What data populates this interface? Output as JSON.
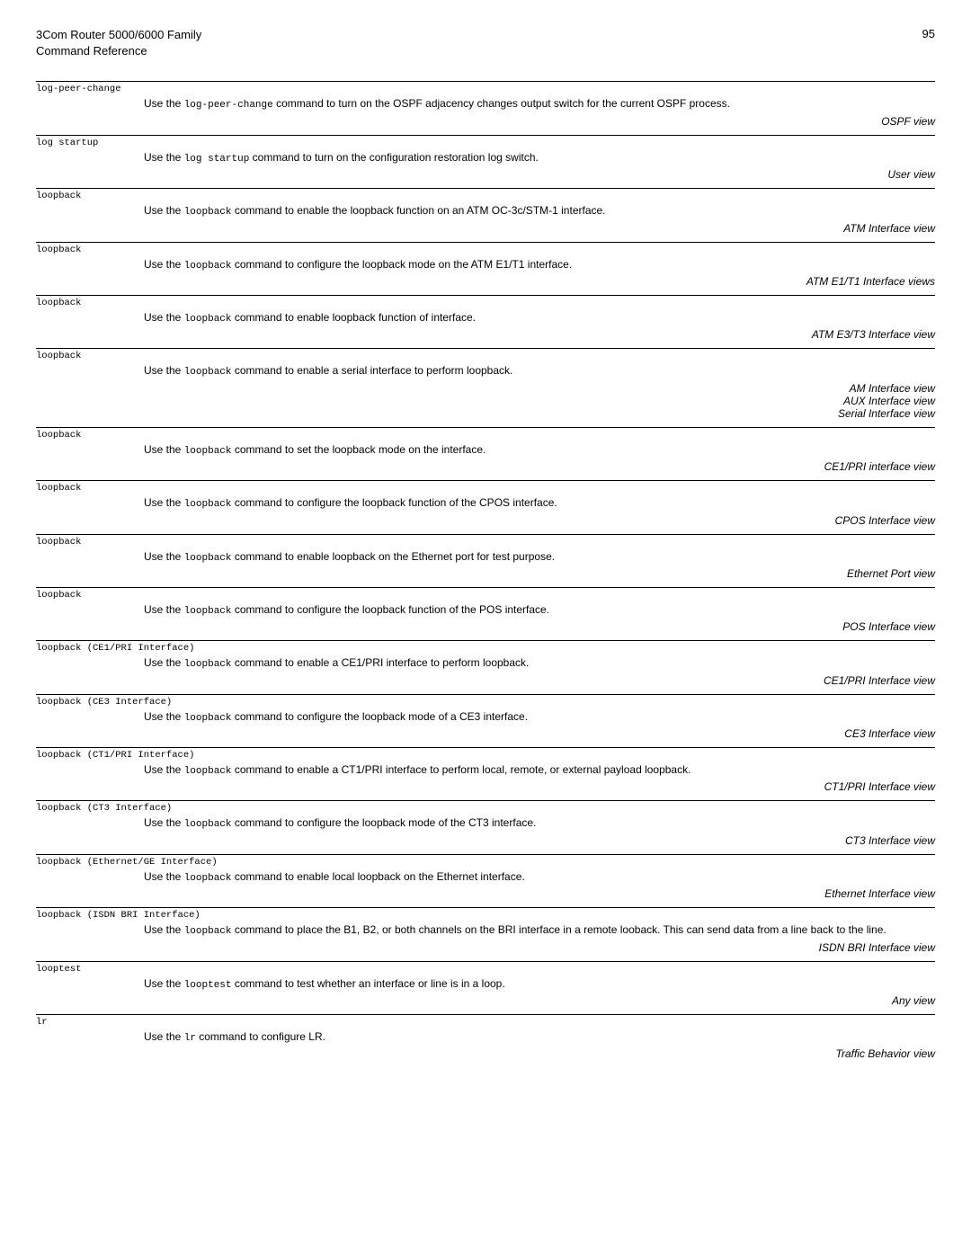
{
  "header": {
    "productLine1": "3Com Router 5000/6000 Family",
    "productLine2": "Command Reference",
    "pageNumber": "95"
  },
  "entries": [
    {
      "cmd": "log-peer-change",
      "desc_pre": "Use the ",
      "desc_code": "log-peer-change",
      "desc_post": " command to turn on the OSPF adjacency changes output switch for the current OSPF process.",
      "views": [
        "OSPF view"
      ]
    },
    {
      "cmd": "log startup",
      "desc_pre": "Use the ",
      "desc_code": "log startup",
      "desc_post": " command to turn on the configuration restoration log switch.",
      "views": [
        "User view"
      ]
    },
    {
      "cmd": "loopback",
      "desc_pre": "Use the ",
      "desc_code": "loopback",
      "desc_post": " command to enable the loopback function on an ATM OC-3c/STM-1 interface.",
      "views": [
        "ATM Interface view"
      ]
    },
    {
      "cmd": "loopback",
      "desc_pre": "Use the ",
      "desc_code": "loopback",
      "desc_post": " command to configure the loopback mode on the ATM E1/T1 interface.",
      "views": [
        "ATM E1/T1 Interface views"
      ]
    },
    {
      "cmd": "loopback",
      "desc_pre": "Use the ",
      "desc_code": "loopback",
      "desc_post": " command to enable loopback function of interface.",
      "views": [
        "ATM E3/T3 Interface view"
      ]
    },
    {
      "cmd": "loopback",
      "desc_pre": "Use the ",
      "desc_code": "loopback",
      "desc_post": " command to enable a serial interface to perform loopback.",
      "views": [
        "AM Interface view",
        "AUX Interface view",
        "Serial Interface view"
      ]
    },
    {
      "cmd": "loopback",
      "desc_pre": "Use the ",
      "desc_code": "loopback",
      "desc_post": " command to set the loopback mode on the interface.",
      "views": [
        "CE1/PRI interface view"
      ]
    },
    {
      "cmd": "loopback",
      "desc_pre": "Use the ",
      "desc_code": "loopback",
      "desc_post": " command to configure the loopback function of the CPOS interface.",
      "views": [
        "CPOS Interface view"
      ]
    },
    {
      "cmd": "loopback",
      "desc_pre": "Use the ",
      "desc_code": "loopback",
      "desc_post": " command to enable loopback on the Ethernet port for test purpose.",
      "views": [
        "Ethernet Port view"
      ]
    },
    {
      "cmd": "loopback",
      "desc_pre": "Use the ",
      "desc_code": "loopback",
      "desc_post": " command to configure the loopback function of the POS interface.",
      "views": [
        "POS Interface view"
      ]
    },
    {
      "cmd": "loopback (CE1/PRI Interface)",
      "desc_pre": "Use the ",
      "desc_code": "loopback",
      "desc_post": " command to enable a CE1/PRI interface to perform loopback.",
      "views": [
        "CE1/PRI Interface view"
      ]
    },
    {
      "cmd": "loopback (CE3 Interface)",
      "desc_pre": "Use the ",
      "desc_code": "loopback",
      "desc_post": " command to configure the loopback mode of a CE3 interface.",
      "views": [
        "CE3 Interface view"
      ]
    },
    {
      "cmd": "loopback (CT1/PRI Interface)",
      "desc_pre": "Use the ",
      "desc_code": "loopback",
      "desc_post": " command to enable a CT1/PRI interface to perform local, remote, or external payload loopback.",
      "views": [
        "CT1/PRI Interface view"
      ]
    },
    {
      "cmd": "loopback (CT3 Interface)",
      "desc_pre": "Use the ",
      "desc_code": "loopback",
      "desc_post": " command to configure the loopback mode of the CT3 interface.",
      "views": [
        "CT3 Interface view"
      ]
    },
    {
      "cmd": "loopback (Ethernet/GE Interface)",
      "desc_pre": "Use the ",
      "desc_code": "loopback",
      "desc_post": " command to enable local loopback on the Ethernet interface.",
      "views": [
        "Ethernet Interface view"
      ]
    },
    {
      "cmd": "loopback (ISDN BRI Interface)",
      "desc_pre": "Use the ",
      "desc_code": "loopback",
      "desc_post": " command to place the B1, B2, or both channels on the BRI interface in a remote looback. This can send data from a line back to the line.",
      "views": [
        "ISDN BRI Interface view"
      ]
    },
    {
      "cmd": "looptest",
      "desc_pre": "Use the ",
      "desc_code": "looptest",
      "desc_post": " command to test whether an interface or line is in a loop.",
      "views": [
        "Any view"
      ]
    },
    {
      "cmd": "lr",
      "desc_pre": "Use the ",
      "desc_code": "lr",
      "desc_post": " command to configure LR.",
      "views": [
        "Traffic Behavior view"
      ]
    }
  ]
}
